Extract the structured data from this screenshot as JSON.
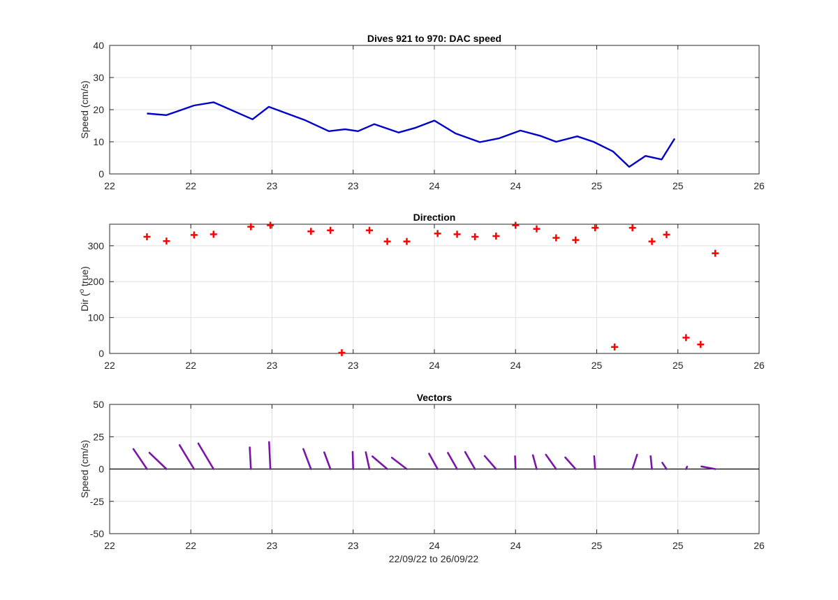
{
  "xlabel": "22/09/22 to 26/09/22",
  "colors": {
    "speed": "#0000c8",
    "direction": "#ff0000",
    "vectors": "#7b15a8",
    "grid": "#e0e0e0",
    "axis": "#262626"
  },
  "chart_data": [
    {
      "type": "line",
      "title": "Dives 921 to 970: DAC speed",
      "ylabel": "Speed (cm/s)",
      "xlabel": "",
      "xlim": [
        22,
        26
      ],
      "ylim": [
        0,
        40
      ],
      "xticks": [
        22,
        22.5,
        23,
        23.5,
        24,
        24.5,
        25,
        25.5,
        26
      ],
      "xticklabels": [
        "22",
        "22",
        "23",
        "23",
        "24",
        "24",
        "25",
        "25",
        "26"
      ],
      "yticks": [
        0,
        10,
        20,
        30,
        40
      ],
      "yticklabels": [
        "0",
        "10",
        "20",
        "30",
        "40"
      ],
      "grid": true,
      "series": [
        {
          "x": [
            22.23,
            22.35,
            22.52,
            22.64,
            22.88,
            22.98,
            23.2,
            23.35,
            23.45,
            23.53,
            23.63,
            23.78,
            23.88,
            24.0,
            24.13,
            24.28,
            24.4,
            24.53,
            24.65,
            24.75,
            24.88,
            24.98,
            25.1,
            25.2,
            25.3,
            25.4,
            25.48
          ],
          "y": [
            18.8,
            18.3,
            21.3,
            22.3,
            17.0,
            20.9,
            16.8,
            13.3,
            13.9,
            13.3,
            15.5,
            12.9,
            14.3,
            16.6,
            12.6,
            9.9,
            11.1,
            13.5,
            11.9,
            10.0,
            11.7,
            10.0,
            7.0,
            2.2,
            5.6,
            4.5,
            11.0
          ]
        }
      ]
    },
    {
      "type": "scatter",
      "title": "Direction",
      "ylabel": "Dir (",
      "ylabel_sup": "o",
      "ylabel_tail": " true)",
      "xlabel": "",
      "xlim": [
        22,
        26
      ],
      "ylim": [
        0,
        360
      ],
      "xticks": [
        22,
        22.5,
        23,
        23.5,
        24,
        24.5,
        25,
        25.5,
        26
      ],
      "xticklabels": [
        "22",
        "22",
        "23",
        "23",
        "24",
        "24",
        "25",
        "25",
        "26"
      ],
      "yticks": [
        0,
        100,
        200,
        300
      ],
      "yticklabels": [
        "0",
        "100",
        "200",
        "300"
      ],
      "grid": true,
      "marker": "+",
      "series": [
        {
          "x": [
            22.23,
            22.35,
            22.52,
            22.64,
            22.87,
            22.99,
            23.24,
            23.36,
            23.43,
            23.6,
            23.71,
            23.83,
            24.02,
            24.14,
            24.25,
            24.38,
            24.5,
            24.63,
            24.75,
            24.87,
            24.99,
            25.11,
            25.22,
            25.34,
            25.43,
            25.55,
            25.64,
            25.73
          ],
          "y": [
            325,
            313,
            330,
            332,
            353,
            357,
            340,
            343,
            2,
            343,
            312,
            312,
            334,
            332,
            325,
            327,
            357,
            347,
            322,
            316,
            350,
            18,
            350,
            312,
            331,
            44,
            25,
            279
          ]
        }
      ]
    },
    {
      "type": "vector",
      "title": "Vectors",
      "ylabel": "Speed (cm/s)",
      "xlabel": "22/09/22 to 26/09/22",
      "xlim": [
        22,
        26
      ],
      "ylim": [
        -50,
        50
      ],
      "xticks": [
        22,
        22.5,
        23,
        23.5,
        24,
        24.5,
        25,
        25.5,
        26
      ],
      "xticklabels": [
        "22",
        "22",
        "23",
        "23",
        "24",
        "24",
        "25",
        "25",
        "26"
      ],
      "yticks": [
        -50,
        -25,
        0,
        25,
        50
      ],
      "yticklabels": [
        "-50",
        "-25",
        "0",
        "25",
        "50"
      ],
      "grid": true,
      "series": [
        {
          "x": [
            22.23,
            22.35,
            22.52,
            22.64,
            22.87,
            22.99,
            23.24,
            23.36,
            23.5,
            23.6,
            23.71,
            23.83,
            24.02,
            24.14,
            24.25,
            24.38,
            24.5,
            24.63,
            24.75,
            24.87,
            24.99,
            25.22,
            25.34,
            25.43,
            25.55,
            25.73
          ],
          "u": [
            -10.5,
            -13.2,
            -11.2,
            -11.8,
            -0.9,
            -1.0,
            -5.9,
            -4.8,
            -0.4,
            -2.8,
            -11.5,
            -11.5,
            -6.6,
            -7.1,
            -7.6,
            -8.8,
            -0.4,
            -2.9,
            -7.9,
            -8.0,
            -0.7,
            3.6,
            -1.0,
            -3.3,
            0.8,
            -10.7
          ],
          "v": [
            15.5,
            12.6,
            18.5,
            19.8,
            16.7,
            20.9,
            15.5,
            12.9,
            13.3,
            13.0,
            9.8,
            8.8,
            11.9,
            12.5,
            13.2,
            10.1,
            9.9,
            10.7,
            11.1,
            9.0,
            10.0,
            11.1,
            10.0,
            4.9,
            1.8,
            2.0
          ]
        }
      ]
    }
  ]
}
